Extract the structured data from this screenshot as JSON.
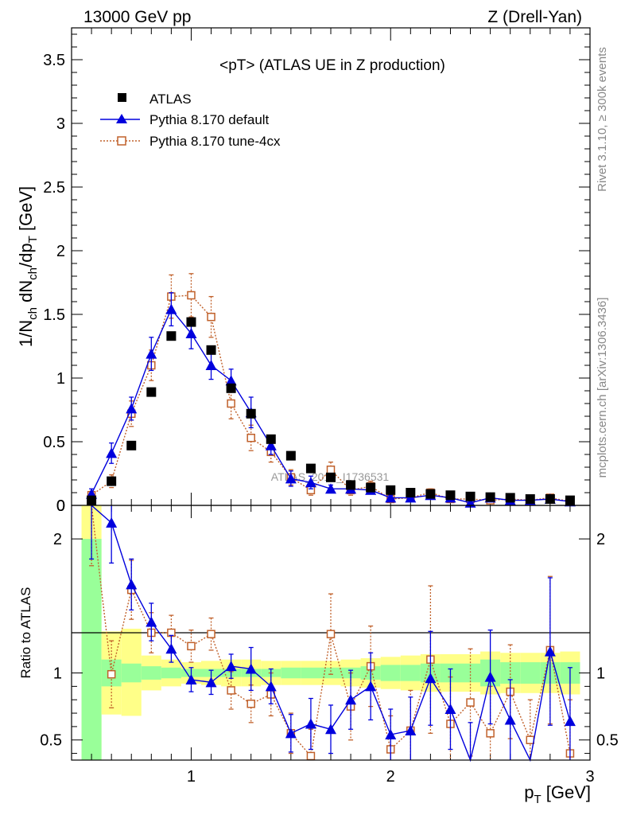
{
  "header": {
    "left": "13000 GeV pp",
    "right": "Z (Drell-Yan)"
  },
  "side_labels": {
    "rivet": "Rivet 3.1.10, ≥ 300k events",
    "mcplots": "mcplots.cern.ch [arXiv:1306.3436]"
  },
  "watermark": "ATLAS_2019_I1736531",
  "colors": {
    "atlas": "#000000",
    "default": "#0000dd",
    "tune": "#c0602a",
    "band_inner": "#99ff99",
    "band_outer": "#ffff88"
  },
  "chart_data": [
    {
      "type": "scatter",
      "title": "<pT> (ATLAS UE in Z production)",
      "xlabel": "p_T [GeV]",
      "ylabel": "1/N_ch dN_ch/dp_T [GeV]",
      "xlim": [
        0.4,
        3.0
      ],
      "ylim": [
        0,
        3.75
      ],
      "yticks": [
        0,
        0.5,
        1,
        1.5,
        2,
        2.5,
        3,
        3.5
      ],
      "ytick_labels": [
        "0",
        "0.5",
        "1",
        "1.5",
        "2",
        "2.5",
        "3",
        "3.5"
      ],
      "legend_position": "top-left",
      "x": [
        0.5,
        0.6,
        0.7,
        0.8,
        0.9,
        1.0,
        1.1,
        1.2,
        1.3,
        1.4,
        1.5,
        1.6,
        1.7,
        1.8,
        1.9,
        2.0,
        2.1,
        2.2,
        2.3,
        2.4,
        2.5,
        2.6,
        2.7,
        2.8,
        2.9
      ],
      "series": [
        {
          "name": "ATLAS",
          "marker": "square",
          "values": [
            0.04,
            0.19,
            0.47,
            0.89,
            1.33,
            1.44,
            1.22,
            0.92,
            0.72,
            0.52,
            0.39,
            0.29,
            0.22,
            0.16,
            0.14,
            0.12,
            0.1,
            0.09,
            0.08,
            0.07,
            0.065,
            0.06,
            0.05,
            0.05,
            0.04
          ],
          "errors": [
            0.01,
            0.01,
            0.01,
            0.01,
            0.01,
            0.01,
            0.01,
            0.01,
            0.01,
            0.01,
            0.01,
            0.01,
            0.01,
            0.01,
            0.01,
            0.01,
            0.01,
            0.01,
            0.01,
            0.01,
            0.01,
            0.01,
            0.01,
            0.01,
            0.01
          ]
        },
        {
          "name": "Pythia 8.170 default",
          "marker": "triangle",
          "values": [
            0.09,
            0.41,
            0.76,
            1.19,
            1.54,
            1.35,
            1.1,
            0.98,
            0.73,
            0.47,
            0.21,
            0.18,
            0.13,
            0.13,
            0.12,
            0.06,
            0.06,
            0.08,
            0.06,
            0.02,
            0.06,
            0.04,
            0.04,
            0.05,
            0.03
          ],
          "errors": [
            0.04,
            0.08,
            0.09,
            0.13,
            0.13,
            0.12,
            0.11,
            0.09,
            0.12,
            0.07,
            0.06,
            0.05,
            0.03,
            0.03,
            0.03,
            0.02,
            0.02,
            0.03,
            0.02,
            0.02,
            0.02,
            0.02,
            0.02,
            0.02,
            0.02
          ]
        },
        {
          "name": "Pythia 8.170 tune-4cx",
          "marker": "open-square",
          "values": [
            0.08,
            0.19,
            0.72,
            1.1,
            1.64,
            1.65,
            1.48,
            0.8,
            0.53,
            0.42,
            0.22,
            0.12,
            0.28,
            0.12,
            0.15,
            0.05,
            0.06,
            0.1,
            0.05,
            0.05,
            0.04,
            0.05,
            0.04,
            0.06,
            0.03
          ],
          "errors": [
            0.03,
            0.05,
            0.1,
            0.12,
            0.17,
            0.17,
            0.16,
            0.12,
            0.1,
            0.08,
            0.06,
            0.04,
            0.06,
            0.04,
            0.04,
            0.02,
            0.02,
            0.03,
            0.02,
            0.02,
            0.02,
            0.02,
            0.02,
            0.02,
            0.02
          ]
        }
      ]
    },
    {
      "type": "line",
      "ylabel": "Ratio to ATLAS",
      "xlabel": "p_T [GeV]",
      "xlim": [
        0.4,
        3.0
      ],
      "ylim": [
        0.35,
        2.25
      ],
      "yticks": [
        0.5,
        1,
        2
      ],
      "ytick_labels": [
        "0.5",
        "1",
        "2"
      ],
      "xticks": [
        1,
        2,
        3
      ],
      "xtick_labels": [
        "1",
        "2",
        "3"
      ],
      "bands": {
        "edges": [
          0.45,
          0.55,
          0.65,
          0.75,
          0.85,
          0.95,
          1.05,
          1.15,
          1.25,
          1.35,
          1.45,
          1.55,
          1.65,
          1.75,
          1.85,
          1.95,
          2.05,
          2.15,
          2.25,
          2.35,
          2.45,
          2.55,
          2.65,
          2.75,
          2.85,
          2.95
        ],
        "inner_lo": [
          0.0,
          0.9,
          0.93,
          0.95,
          0.96,
          0.97,
          0.97,
          0.97,
          0.97,
          0.97,
          0.96,
          0.96,
          0.96,
          0.96,
          0.95,
          0.94,
          0.94,
          0.93,
          0.93,
          0.93,
          0.9,
          0.92,
          0.92,
          0.92,
          0.92
        ],
        "inner_hi": [
          2.0,
          1.1,
          1.07,
          1.05,
          1.04,
          1.03,
          1.03,
          1.03,
          1.03,
          1.03,
          1.04,
          1.04,
          1.04,
          1.04,
          1.05,
          1.06,
          1.06,
          1.07,
          1.07,
          1.07,
          1.1,
          1.08,
          1.08,
          1.08,
          1.08
        ],
        "outer_lo": [
          0.0,
          0.69,
          0.68,
          0.87,
          0.9,
          0.92,
          0.91,
          0.9,
          0.9,
          0.91,
          0.91,
          0.91,
          0.91,
          0.9,
          0.89,
          0.88,
          0.87,
          0.86,
          0.86,
          0.86,
          0.84,
          0.85,
          0.85,
          0.85,
          0.84
        ],
        "outer_hi": [
          2.25,
          1.31,
          1.33,
          1.13,
          1.1,
          1.08,
          1.09,
          1.1,
          1.1,
          1.09,
          1.09,
          1.09,
          1.09,
          1.1,
          1.11,
          1.12,
          1.13,
          1.14,
          1.14,
          1.14,
          1.16,
          1.15,
          1.15,
          1.15,
          1.16
        ]
      },
      "x": [
        0.5,
        0.6,
        0.7,
        0.8,
        0.9,
        1.0,
        1.1,
        1.2,
        1.3,
        1.4,
        1.5,
        1.6,
        1.7,
        1.8,
        1.9,
        2.0,
        2.1,
        2.2,
        2.3,
        2.4,
        2.5,
        2.6,
        2.7,
        2.8,
        2.9
      ],
      "series": [
        {
          "name": "Pythia 8.170 default",
          "marker": "triangle",
          "values": [
            2.35,
            2.12,
            1.66,
            1.38,
            1.18,
            0.95,
            0.93,
            1.05,
            1.03,
            0.9,
            0.55,
            0.62,
            0.58,
            0.8,
            0.9,
            0.54,
            0.57,
            0.96,
            0.73,
            0.28,
            0.97,
            0.65,
            null,
            1.16,
            0.64
          ],
          "errors": [
            0.5,
            0.3,
            0.19,
            0.14,
            0.1,
            0.09,
            0.09,
            0.09,
            0.16,
            0.13,
            0.14,
            0.19,
            0.18,
            0.22,
            0.25,
            0.19,
            0.25,
            0.35,
            0.3,
            0.35,
            0.35,
            0.3,
            0.3,
            0.55,
            0.4
          ]
        },
        {
          "name": "Pythia 8.170 tune-4cx",
          "marker": "open-square",
          "values": [
            2.4,
            0.99,
            1.62,
            1.3,
            1.3,
            1.2,
            1.29,
            0.87,
            0.77,
            0.84,
            0.55,
            0.38,
            1.29,
            0.75,
            1.05,
            0.43,
            0.57,
            1.1,
            0.62,
            0.78,
            0.55,
            0.86,
            0.5,
            1.17,
            0.4
          ],
          "errors": [
            0.6,
            0.25,
            0.22,
            0.15,
            0.13,
            0.12,
            0.12,
            0.14,
            0.14,
            0.16,
            0.15,
            0.2,
            0.3,
            0.25,
            0.3,
            0.25,
            0.3,
            0.55,
            0.35,
            0.4,
            0.35,
            0.35,
            0.3,
            0.55,
            0.4
          ]
        }
      ]
    }
  ]
}
